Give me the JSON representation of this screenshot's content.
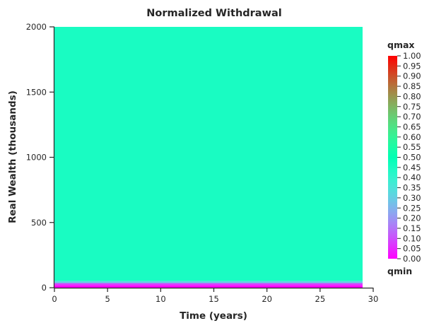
{
  "chart_data": {
    "type": "heatmap",
    "title": "Normalized Withdrawal",
    "xlabel": "Time (years)",
    "ylabel": "Real Wealth (thousands)",
    "xlim": [
      0,
      30
    ],
    "ylim": [
      0,
      2000
    ],
    "data_x_extent": [
      0,
      29
    ],
    "x_ticks": [
      "0",
      "5",
      "10",
      "15",
      "20",
      "25",
      "30"
    ],
    "y_ticks": [
      "0",
      "500",
      "1000",
      "1500",
      "2000"
    ],
    "bands": [
      {
        "y_from": 0,
        "y_to": 20,
        "value": 0.0
      },
      {
        "y_from": 20,
        "y_to": 35,
        "value": 0.08
      },
      {
        "y_from": 35,
        "y_to": 50,
        "value": 0.3
      },
      {
        "y_from": 50,
        "y_to": 2000,
        "value": 0.45
      }
    ],
    "colorbar": {
      "colormap": "rainbow",
      "min": 0.0,
      "max": 1.0,
      "top_label": "qmax",
      "bottom_label": "qmin",
      "ticks": [
        "0.00",
        "0.05",
        "0.10",
        "0.15",
        "0.20",
        "0.25",
        "0.30",
        "0.35",
        "0.40",
        "0.45",
        "0.50",
        "0.55",
        "0.60",
        "0.65",
        "0.70",
        "0.75",
        "0.80",
        "0.85",
        "0.90",
        "0.95",
        "1.00"
      ]
    },
    "grid": false,
    "legend": "none"
  }
}
